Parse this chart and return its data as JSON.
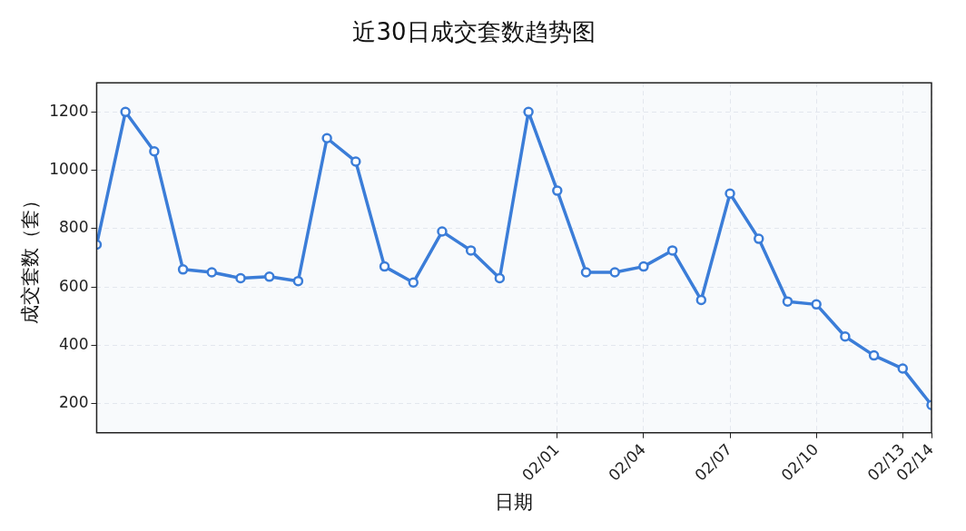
{
  "chart_data": {
    "type": "line",
    "title": "近30日成交套数趋势图",
    "xlabel": "日期",
    "ylabel": "成交套数（套）",
    "x": [
      "--01-16",
      "--01-17",
      "--01-18",
      "--01-19",
      "--01-20",
      "--01-21",
      "--01-22",
      "--01-23",
      "--01-24",
      "--01-25",
      "--01-26",
      "--01-27",
      "--01-28",
      "--01-29",
      "--01-30",
      "--01-31",
      "--02-01",
      "--02-02",
      "--02-03",
      "--02-04",
      "--02-05",
      "--02-06",
      "--02-07",
      "--02-08",
      "--02-09",
      "--02-10",
      "--02-11",
      "--02-12",
      "--02-13",
      "--02-14"
    ],
    "series": [
      {
        "color": "#3b7dd8",
        "values": [
          745,
          1200,
          1065,
          660,
          650,
          630,
          635,
          620,
          1110,
          1030,
          670,
          615,
          790,
          725,
          630,
          1200,
          930,
          650,
          650,
          670,
          725,
          555,
          920,
          765,
          550,
          540,
          430,
          365,
          320,
          195
        ]
      }
    ],
    "xlim": [
      "--01-16",
      "--02-14"
    ],
    "xticks": [
      {
        "value": "--02-01",
        "label": "02/01"
      },
      {
        "value": "--02-04",
        "label": "02/04"
      },
      {
        "value": "--02-07",
        "label": "02/07"
      },
      {
        "value": "--02-10",
        "label": "02/10"
      },
      {
        "value": "--02-13",
        "label": "02/13"
      },
      {
        "value": "--02-14",
        "label": "02/14"
      }
    ],
    "ylim": [
      100,
      1300
    ],
    "yticks": [
      200,
      400,
      600,
      800,
      1000,
      1200
    ],
    "grid": true,
    "marker": "circle",
    "line_style": "solid",
    "legend": false
  }
}
